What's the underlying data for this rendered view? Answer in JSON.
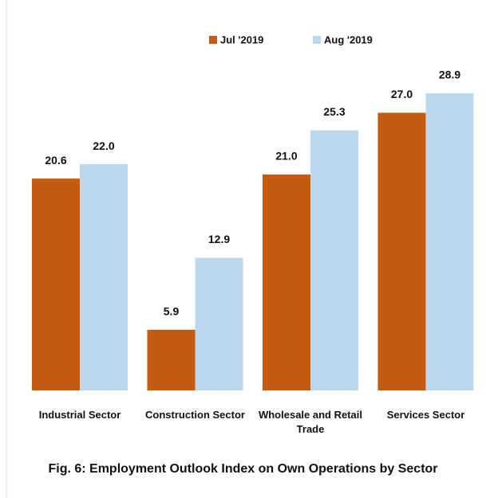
{
  "chart_data": {
    "type": "bar",
    "title": "Fig. 6: Employment Outlook  Index on Own Operations by Sector",
    "categories": [
      "Industrial Sector",
      "Construction Sector",
      "Wholesale and Retail Trade",
      "Services Sector"
    ],
    "series": [
      {
        "name": "Jul '2019",
        "color": "#c55a11",
        "values": [
          20.6,
          5.9,
          21.0,
          27.0
        ],
        "value_labels": [
          "20.6",
          "5.9",
          "21.0",
          "27.0"
        ]
      },
      {
        "name": "Aug '2019",
        "color": "#bdd7ee",
        "values": [
          22.0,
          12.9,
          25.3,
          28.9
        ],
        "value_labels": [
          "22.0",
          "12.9",
          "25.3",
          "28.9"
        ]
      }
    ],
    "legend": "top"
  }
}
